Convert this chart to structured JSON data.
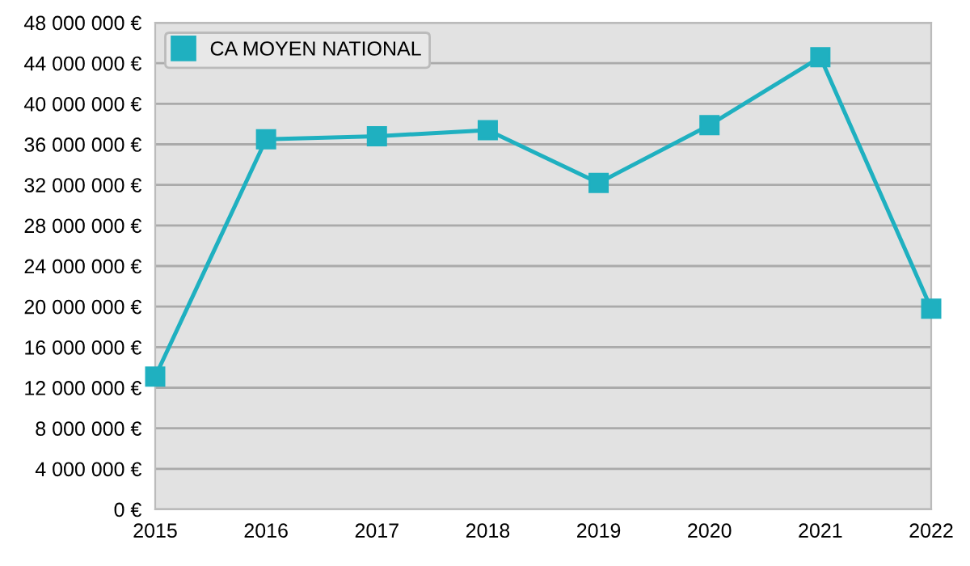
{
  "chart_data": {
    "type": "line",
    "categories": [
      "2015",
      "2016",
      "2017",
      "2018",
      "2019",
      "2020",
      "2021",
      "2022"
    ],
    "series": [
      {
        "name": "CA MOYEN NATIONAL",
        "color": "#1fb0c0",
        "values": [
          13100000,
          36500000,
          36800000,
          37400000,
          32200000,
          37900000,
          44600000,
          19800000
        ]
      }
    ],
    "ylim": [
      0,
      48000000
    ],
    "yticks": [
      {
        "value": 0,
        "label": "0 €"
      },
      {
        "value": 4000000,
        "label": "4 000 000 €"
      },
      {
        "value": 8000000,
        "label": "8 000 000 €"
      },
      {
        "value": 12000000,
        "label": "12 000 000 €"
      },
      {
        "value": 16000000,
        "label": "16 000 000 €"
      },
      {
        "value": 20000000,
        "label": "20 000 000 €"
      },
      {
        "value": 24000000,
        "label": "24 000 000 €"
      },
      {
        "value": 28000000,
        "label": "28 000 000 €"
      },
      {
        "value": 32000000,
        "label": "32 000 000 €"
      },
      {
        "value": 36000000,
        "label": "36 000 000 €"
      },
      {
        "value": 40000000,
        "label": "40 000 000 €"
      },
      {
        "value": 44000000,
        "label": "44 000 000 €"
      },
      {
        "value": 48000000,
        "label": "48 000 000 €"
      }
    ],
    "grid": "y",
    "legend": "top left",
    "marker": "square",
    "line_style": "solid"
  }
}
